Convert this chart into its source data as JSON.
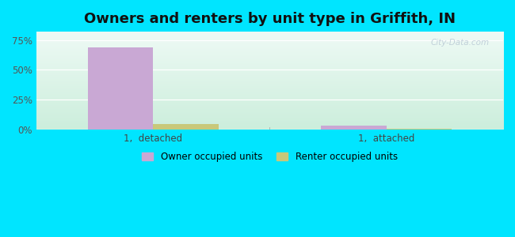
{
  "title": "Owners and renters by unit type in Griffith, IN",
  "categories": [
    "1,  detached",
    "1,  attached"
  ],
  "owner_values": [
    68.5,
    3.2
  ],
  "renter_values": [
    4.8,
    0.5
  ],
  "owner_color": "#c9a8d4",
  "renter_color": "#c8c87a",
  "yticks": [
    0,
    25,
    50,
    75
  ],
  "yticklabels": [
    "0%",
    "25%",
    "50%",
    "75%"
  ],
  "ylim": [
    0,
    82
  ],
  "outer_bg": "#00e5ff",
  "title_fontsize": 13,
  "watermark": "City-Data.com",
  "bar_width": 0.28,
  "bg_colors_lr": [
    "#d8f0e4",
    "#e8faf0"
  ],
  "bg_colors_tb": [
    "#caeae0",
    "#f0faf5"
  ]
}
